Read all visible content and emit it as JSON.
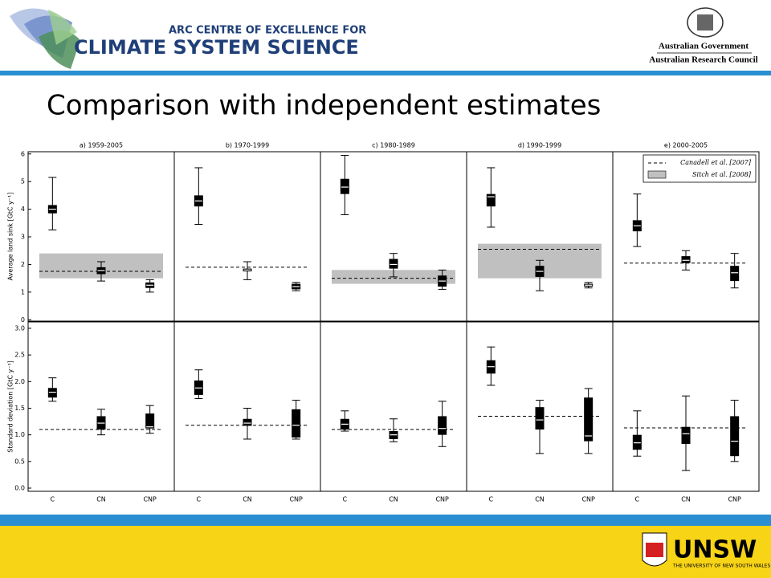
{
  "header": {
    "centre_line1": "ARC CENTRE OF EXCELLENCE FOR",
    "centre_line2": "CLIMATE SYSTEM SCIENCE",
    "gov_line1": "Australian Government",
    "gov_line2": "Australian Research Council",
    "slide_title": "Comparison with independent estimates"
  },
  "footer": {
    "logo_text": "UNSW",
    "logo_subtext": "THE UNIVERSITY OF NEW SOUTH WALES"
  },
  "chart_data": [
    {
      "type": "box",
      "title": "a) 1959-2005",
      "ylabel": "Average land sink [GtC y⁻¹]",
      "categories": [
        null,
        null,
        null
      ],
      "ylim": [
        -0.05,
        6.08
      ],
      "yticks": [
        0,
        1,
        2,
        3,
        4,
        5,
        6
      ],
      "boxes": [
        {
          "whislo": 3.25,
          "q1": 3.85,
          "med": 4.0,
          "q3": 4.15,
          "whishi": 5.15
        },
        {
          "whislo": 1.4,
          "q1": 1.65,
          "med": 1.78,
          "q3": 1.9,
          "whishi": 2.1
        },
        {
          "whislo": 1.0,
          "q1": 1.15,
          "med": 1.25,
          "q3": 1.35,
          "whishi": 1.45
        }
      ],
      "reference_line": 1.75,
      "reference_band": [
        1.5,
        2.4
      ]
    },
    {
      "type": "box",
      "title": "b) 1970-1999",
      "categories": [
        null,
        null,
        null
      ],
      "ylim": [
        -0.05,
        6.08
      ],
      "boxes": [
        {
          "whislo": 3.45,
          "q1": 4.1,
          "med": 4.3,
          "q3": 4.5,
          "whishi": 5.5
        },
        {
          "whislo": 1.45,
          "q1": 1.75,
          "med": 1.8,
          "q3": 1.85,
          "whishi": 2.1
        },
        {
          "whislo": 1.05,
          "q1": 1.1,
          "med": 1.2,
          "q3": 1.3,
          "whishi": 1.35
        }
      ],
      "reference_line": 1.9
    },
    {
      "type": "box",
      "title": "c) 1980-1989",
      "categories": [
        null,
        null,
        null
      ],
      "ylim": [
        -0.05,
        6.08
      ],
      "boxes": [
        {
          "whislo": 3.8,
          "q1": 4.55,
          "med": 4.8,
          "q3": 5.1,
          "whishi": 5.95
        },
        {
          "whislo": 1.55,
          "q1": 1.85,
          "med": 2.0,
          "q3": 2.2,
          "whishi": 2.4
        },
        {
          "whislo": 1.1,
          "q1": 1.2,
          "med": 1.4,
          "q3": 1.6,
          "whishi": 1.8
        }
      ],
      "reference_line": 1.5,
      "reference_band": [
        1.3,
        1.8
      ]
    },
    {
      "type": "box",
      "title": "d) 1990-1999",
      "categories": [
        null,
        null,
        null
      ],
      "ylim": [
        -0.05,
        6.08
      ],
      "boxes": [
        {
          "whislo": 3.35,
          "q1": 4.1,
          "med": 4.45,
          "q3": 4.55,
          "whishi": 5.5
        },
        {
          "whislo": 1.05,
          "q1": 1.55,
          "med": 1.75,
          "q3": 1.95,
          "whishi": 2.15
        },
        {
          "whislo": 1.15,
          "q1": 1.2,
          "med": 1.25,
          "q3": 1.3,
          "whishi": 1.35
        }
      ],
      "reference_line": 2.55,
      "reference_band": [
        1.5,
        2.75
      ]
    },
    {
      "type": "box",
      "title": "e) 2000-2005",
      "categories": [
        null,
        null,
        null
      ],
      "ylim": [
        -0.05,
        6.08
      ],
      "boxes": [
        {
          "whislo": 2.65,
          "q1": 3.2,
          "med": 3.4,
          "q3": 3.6,
          "whishi": 4.55
        },
        {
          "whislo": 1.8,
          "q1": 2.05,
          "med": 2.15,
          "q3": 2.3,
          "whishi": 2.5
        },
        {
          "whislo": 1.15,
          "q1": 1.4,
          "med": 1.7,
          "q3": 1.95,
          "whishi": 2.4
        }
      ],
      "reference_line": 2.05,
      "legend": {
        "position": "upper right",
        "line_label": "Canadell et al. [2007]",
        "band_label": "Sitch et al. [2008]"
      }
    },
    {
      "type": "box",
      "ylabel": "Standard deviation [GtC y⁻¹]",
      "categories": [
        "C",
        "CN",
        "CNP"
      ],
      "ylim": [
        -0.06,
        3.12
      ],
      "yticks": [
        {
          "value": 0,
          "label": "0.0"
        },
        0.5,
        {
          "value": 1,
          "label": "1.0"
        },
        1.5,
        {
          "value": 2,
          "label": "2.0"
        },
        2.5,
        {
          "value": 3,
          "label": "3.0"
        }
      ],
      "boxes": [
        {
          "whislo": 1.63,
          "q1": 1.7,
          "med": 1.8,
          "q3": 1.88,
          "whishi": 2.07
        },
        {
          "whislo": 1.0,
          "q1": 1.1,
          "med": 1.22,
          "q3": 1.35,
          "whishi": 1.48
        },
        {
          "whislo": 1.03,
          "q1": 1.12,
          "med": 1.15,
          "q3": 1.4,
          "whishi": 1.55
        }
      ],
      "reference_line": 1.1
    },
    {
      "type": "box",
      "categories": [
        "C",
        "CN",
        "CNP"
      ],
      "ylim": [
        -0.06,
        3.12
      ],
      "boxes": [
        {
          "whislo": 1.68,
          "q1": 1.75,
          "med": 1.88,
          "q3": 2.02,
          "whishi": 2.22
        },
        {
          "whislo": 0.92,
          "q1": 1.17,
          "med": 1.22,
          "q3": 1.3,
          "whishi": 1.5
        },
        {
          "whislo": 0.92,
          "q1": 0.95,
          "med": 1.18,
          "q3": 1.48,
          "whishi": 1.65
        }
      ],
      "reference_line": 1.18
    },
    {
      "type": "box",
      "categories": [
        "C",
        "CN",
        "CNP"
      ],
      "ylim": [
        -0.06,
        3.12
      ],
      "boxes": [
        {
          "whislo": 1.07,
          "q1": 1.1,
          "med": 1.2,
          "q3": 1.3,
          "whishi": 1.45
        },
        {
          "whislo": 0.87,
          "q1": 0.92,
          "med": 1.0,
          "q3": 1.07,
          "whishi": 1.3
        },
        {
          "whislo": 0.78,
          "q1": 1.0,
          "med": 1.12,
          "q3": 1.35,
          "whishi": 1.63
        }
      ],
      "reference_line": 1.1
    },
    {
      "type": "box",
      "categories": [
        "C",
        "CN",
        "CNP"
      ],
      "ylim": [
        -0.06,
        3.12
      ],
      "boxes": [
        {
          "whislo": 1.93,
          "q1": 2.15,
          "med": 2.28,
          "q3": 2.4,
          "whishi": 2.65
        },
        {
          "whislo": 0.65,
          "q1": 1.1,
          "med": 1.28,
          "q3": 1.52,
          "whishi": 1.65
        },
        {
          "whislo": 0.65,
          "q1": 0.88,
          "med": 0.98,
          "q3": 1.7,
          "whishi": 1.87
        }
      ],
      "reference_line": 1.35
    },
    {
      "type": "box",
      "categories": [
        "C",
        "CN",
        "CNP"
      ],
      "ylim": [
        -0.06,
        3.12
      ],
      "boxes": [
        {
          "whislo": 0.6,
          "q1": 0.72,
          "med": 0.85,
          "q3": 1.0,
          "whishi": 1.45
        },
        {
          "whislo": 0.33,
          "q1": 0.83,
          "med": 1.02,
          "q3": 1.15,
          "whishi": 1.73
        },
        {
          "whislo": 0.5,
          "q1": 0.6,
          "med": 0.88,
          "q3": 1.35,
          "whishi": 1.65
        }
      ],
      "reference_line": 1.13
    }
  ]
}
